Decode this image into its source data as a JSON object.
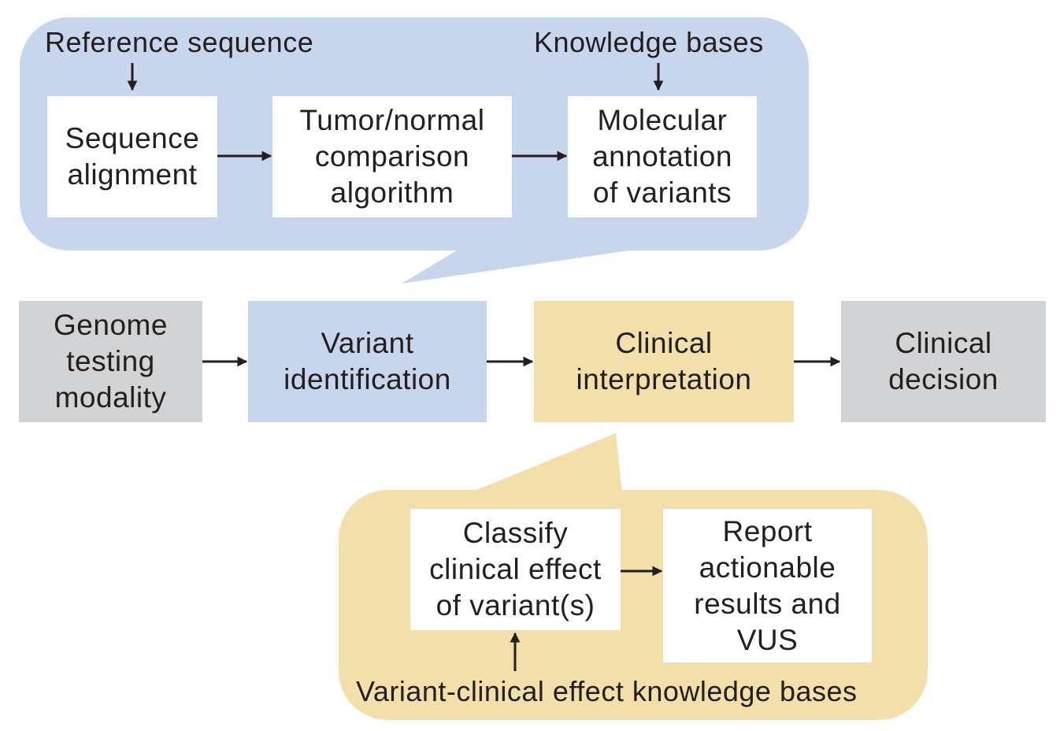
{
  "colors": {
    "blue_panel": "#c7d6ec",
    "tan_panel": "#f2dfaa",
    "gray_box": "#d2d3d5",
    "white_box": "#ffffff",
    "text": "#231f20"
  },
  "top_callout": {
    "input_left": "Reference sequence",
    "input_right": "Knowledge bases",
    "steps": [
      {
        "label": "Sequence\nalignment"
      },
      {
        "label": "Tumor/normal\ncomparison\nalgorithm"
      },
      {
        "label": "Molecular\nannotation\nof variants"
      }
    ]
  },
  "main_flow": [
    {
      "label": "Genome\ntesting\nmodality"
    },
    {
      "label": "Variant\nidentification"
    },
    {
      "label": "Clinical\ninterpretation"
    },
    {
      "label": "Clinical\ndecision"
    }
  ],
  "bottom_callout": {
    "steps": [
      {
        "label": "Classify\nclinical effect\nof variant(s)"
      },
      {
        "label": "Report\nactionable\nresults and\nVUS"
      }
    ],
    "input_bottom": "Variant-clinical effect knowledge bases"
  }
}
